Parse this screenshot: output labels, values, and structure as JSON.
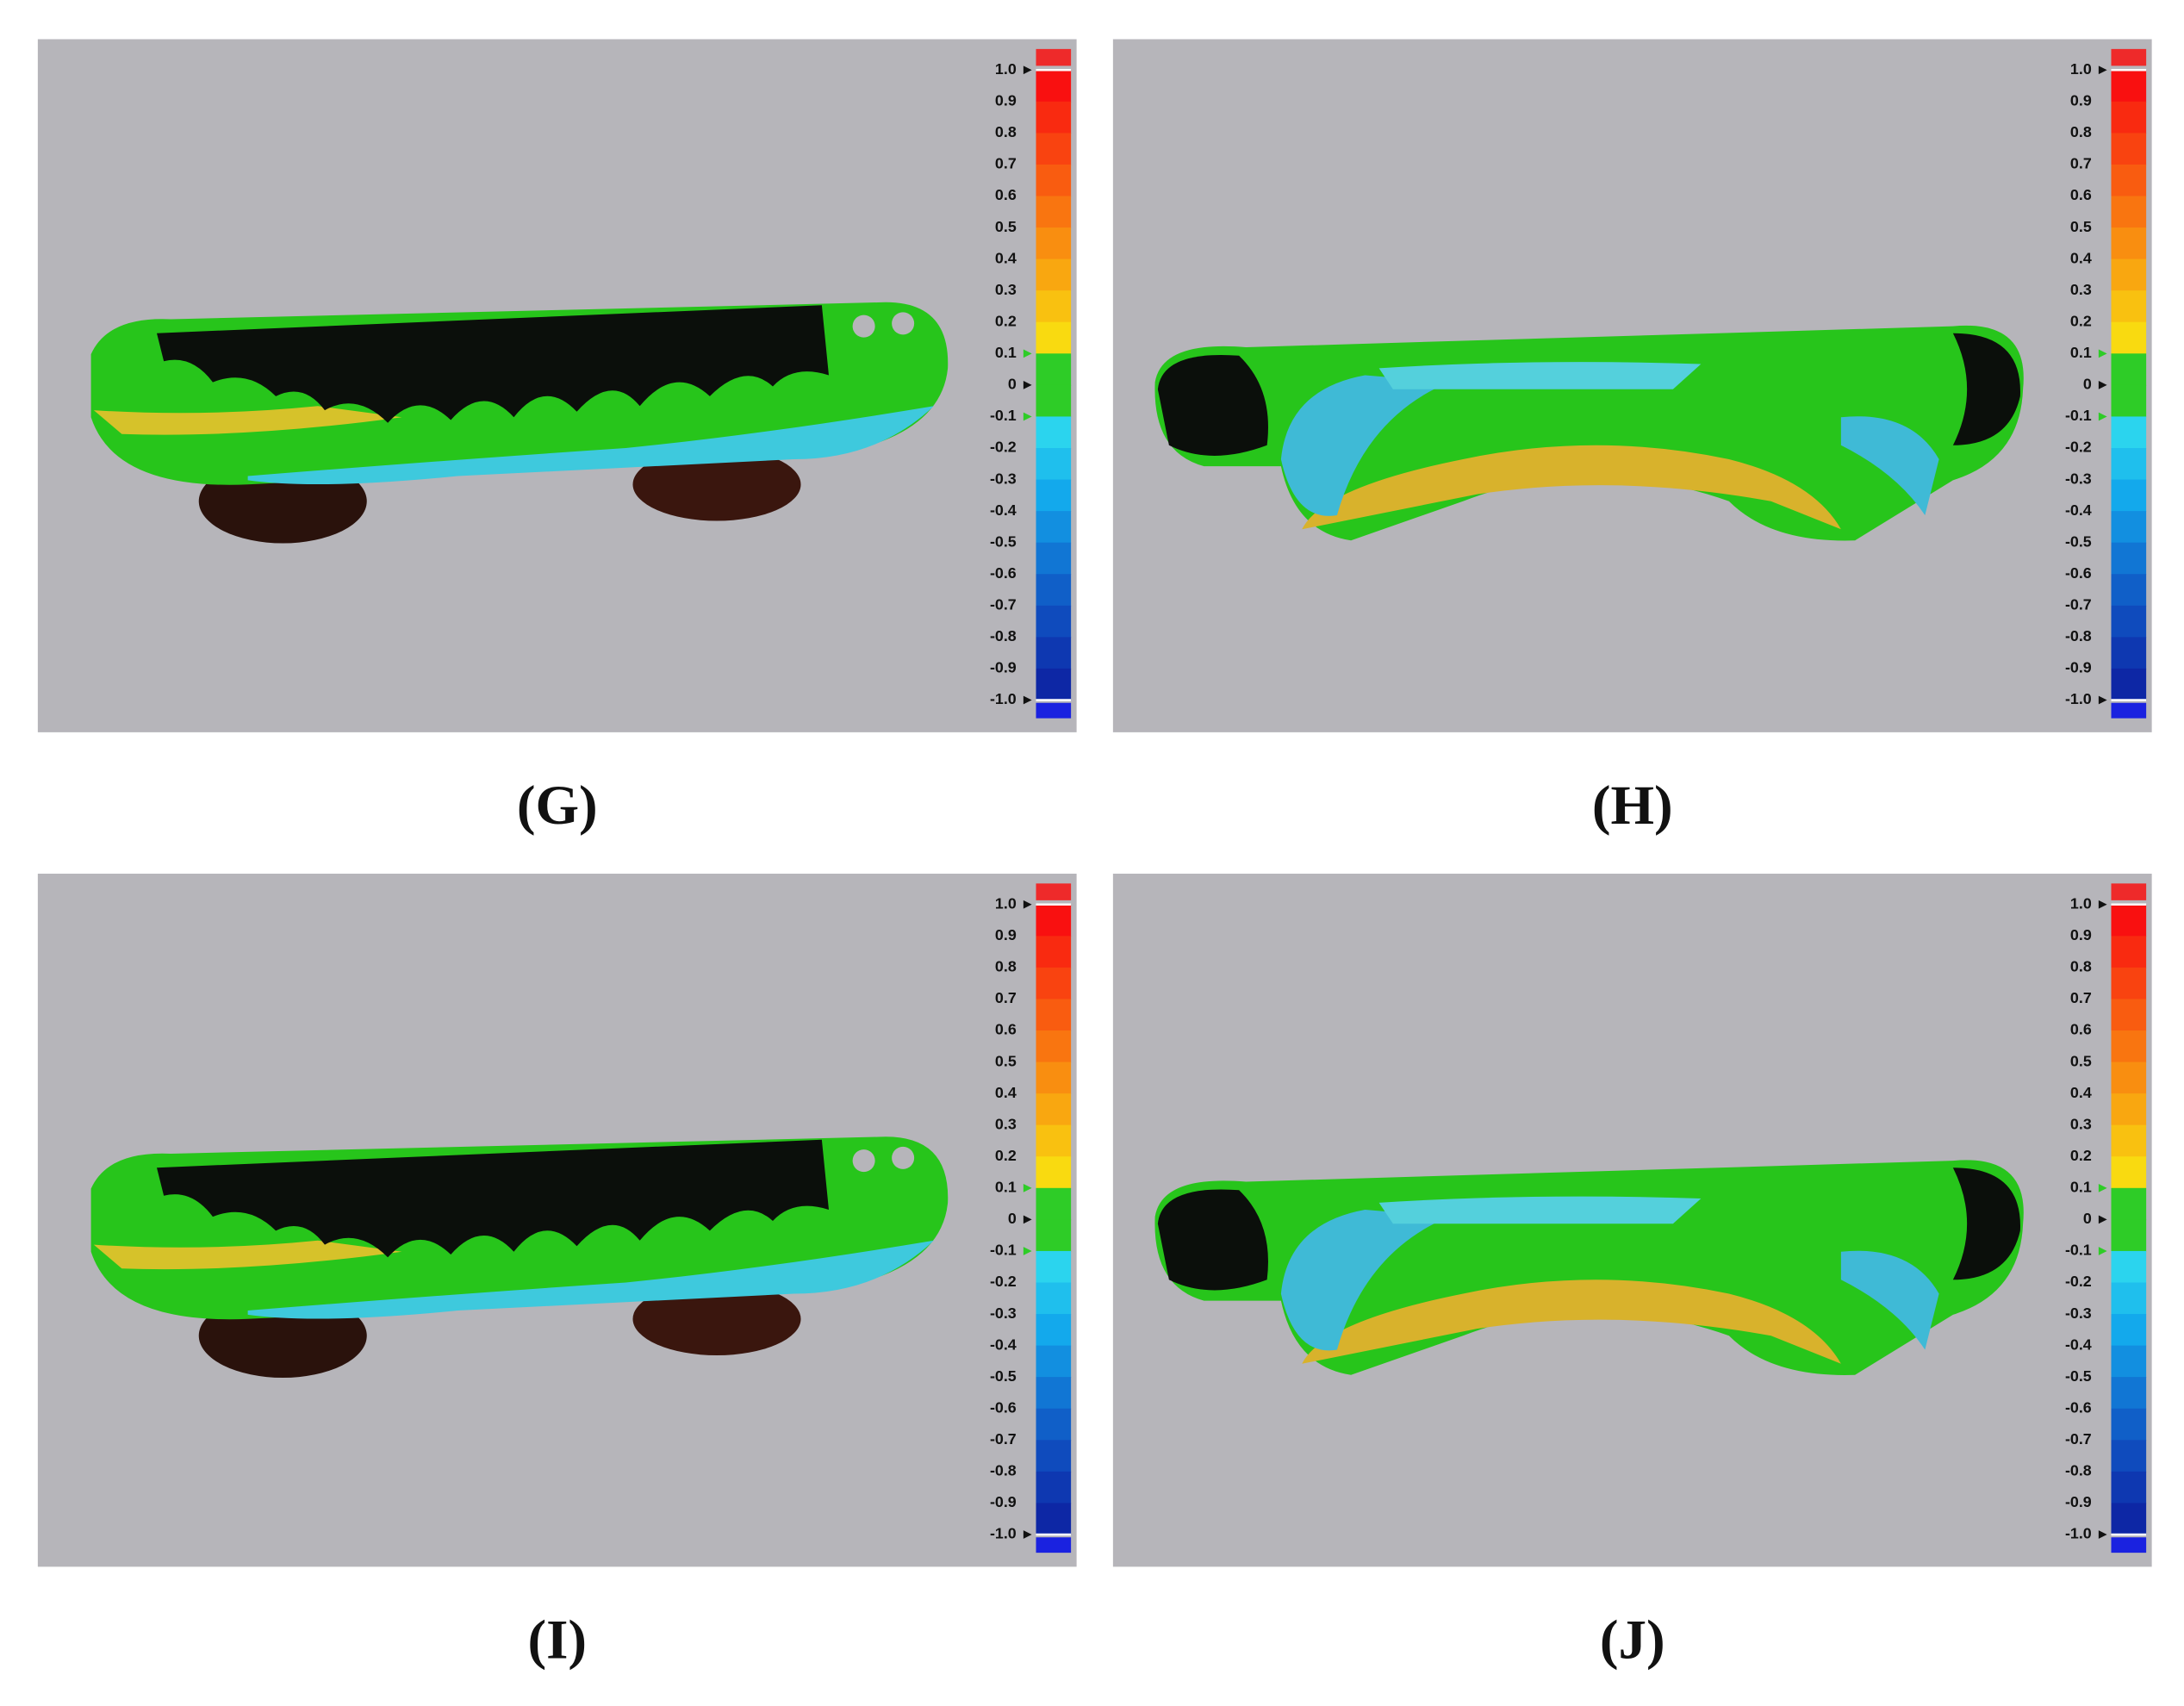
{
  "panels": [
    {
      "label": "(G)"
    },
    {
      "label": "(H)"
    },
    {
      "label": "(I)"
    },
    {
      "label": "(J)"
    }
  ],
  "colorbar": {
    "labels": [
      "1.0",
      "0.9",
      "0.8",
      "0.7",
      "0.6",
      "0.5",
      "0.4",
      "0.3",
      "0.2",
      "0.1",
      "0",
      "-0.1",
      "-0.2",
      "-0.3",
      "-0.4",
      "-0.5",
      "-0.6",
      "-0.7",
      "-0.8",
      "-0.9",
      "-1.0"
    ]
  }
}
